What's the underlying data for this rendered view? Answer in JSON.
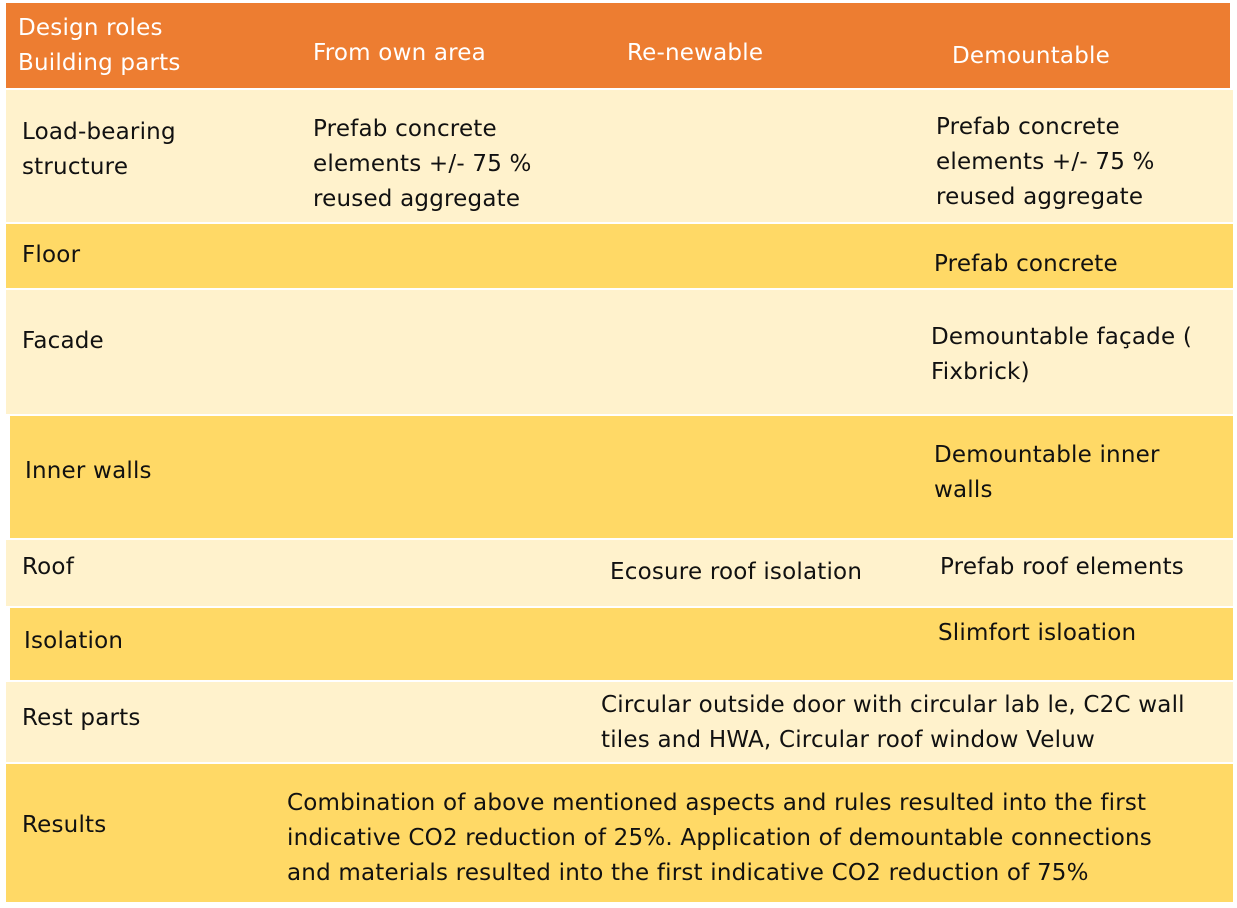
{
  "header": {
    "corner_line1": "Design roles",
    "corner_line2": "Building parts",
    "columns": [
      "From own area",
      "Re-newable",
      "Demountable"
    ]
  },
  "rows": [
    {
      "label": "Load-bearing",
      "label2": "structure",
      "own_area": [
        "Prefab concrete",
        "elements +/- 75 %",
        "reused aggregate"
      ],
      "demountable": [
        "Prefab concrete",
        "elements +/- 75 %",
        "reused aggregate"
      ]
    },
    {
      "label": "Floor",
      "demountable": [
        "Prefab concrete"
      ]
    },
    {
      "label": "Facade",
      "demountable": [
        "Demountable façade (",
        "Fixbrick)"
      ]
    },
    {
      "label": "Inner walls",
      "demountable": [
        "Demountable inner",
        "walls"
      ]
    },
    {
      "label": "Roof",
      "renewable": [
        "Ecosure roof isolation"
      ],
      "demountable": [
        "Prefab roof elements"
      ]
    },
    {
      "label": "Isolation",
      "demountable": [
        "Slimfort isloation"
      ]
    },
    {
      "label": "Rest parts",
      "span": [
        "Circular outside door with circular lab le, C2C wall",
        "tiles and HWA, Circular roof window Veluw"
      ]
    },
    {
      "label": "Results",
      "span": [
        "Combination of above mentioned aspects and rules resulted into the first",
        "indicative CO2 reduction of 25%. Application of demountable connections",
        "and materials resulted into the first indicative  CO2 reduction of 75%"
      ]
    }
  ],
  "colors": {
    "header": "#ed7d31",
    "light_row": "#fff2cc",
    "dark_row": "#ffd966"
  }
}
